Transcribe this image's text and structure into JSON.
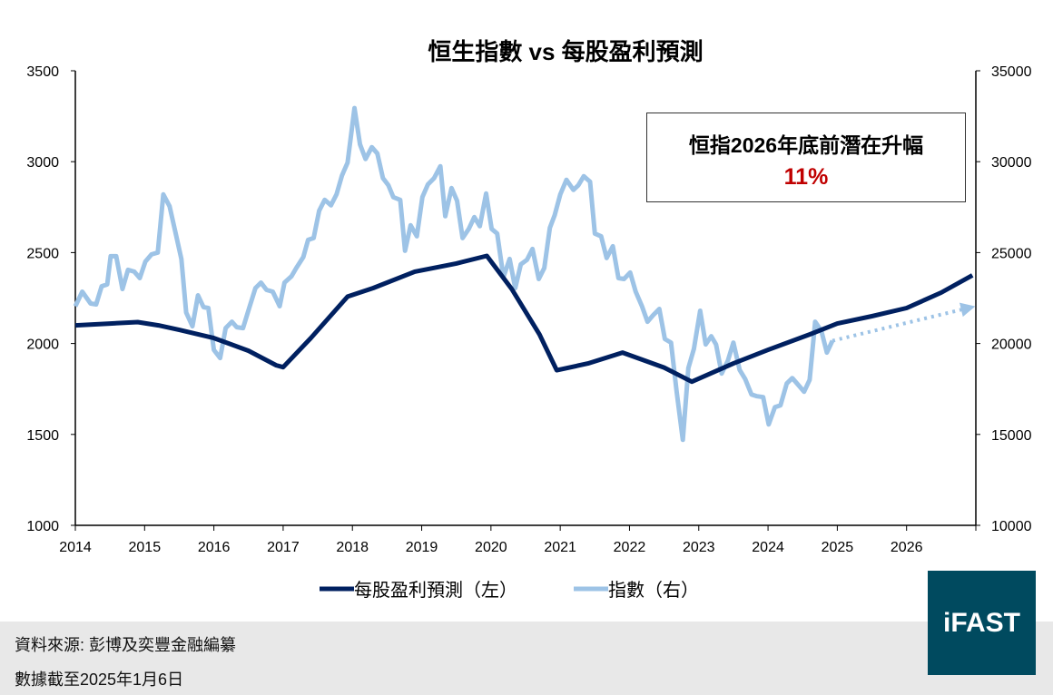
{
  "chart_data": {
    "type": "line",
    "title": "恒生指數 vs 每股盈利預測",
    "x_ticks": [
      "2014",
      "2015",
      "2016",
      "2017",
      "2018",
      "2019",
      "2020",
      "2021",
      "2022",
      "2023",
      "2024",
      "2025",
      "2026"
    ],
    "xlim": [
      2014,
      2027
    ],
    "y_left": {
      "ylim": [
        1000,
        3500
      ],
      "ticks": [
        "1000",
        "1500",
        "2000",
        "2500",
        "3000",
        "3500"
      ]
    },
    "y_right": {
      "ylim": [
        10000,
        35000
      ],
      "ticks": [
        "10000",
        "15000",
        "20000",
        "25000",
        "30000",
        "35000"
      ]
    },
    "grid": false,
    "legend_placement": "bottom",
    "series": [
      {
        "name": "每股盈利預測（左）",
        "axis": "left",
        "color": "#002060",
        "points": [
          [
            2014.0,
            2100
          ],
          [
            2014.5,
            2110
          ],
          [
            2014.9,
            2118
          ],
          [
            2015.2,
            2100
          ],
          [
            2015.5,
            2075
          ],
          [
            2016.0,
            2030
          ],
          [
            2016.5,
            1960
          ],
          [
            2016.9,
            1880
          ],
          [
            2017.0,
            1870
          ],
          [
            2017.4,
            2030
          ],
          [
            2017.93,
            2258
          ],
          [
            2018.3,
            2305
          ],
          [
            2018.9,
            2395
          ],
          [
            2019.5,
            2440
          ],
          [
            2019.94,
            2482
          ],
          [
            2020.3,
            2300
          ],
          [
            2020.7,
            2050
          ],
          [
            2020.95,
            1853
          ],
          [
            2021.4,
            1890
          ],
          [
            2021.9,
            1950
          ],
          [
            2022.5,
            1868
          ],
          [
            2022.9,
            1790
          ],
          [
            2023.5,
            1890
          ],
          [
            2024.0,
            1965
          ],
          [
            2024.6,
            2050
          ],
          [
            2025.0,
            2110
          ],
          [
            2025.5,
            2150
          ],
          [
            2026.0,
            2195
          ],
          [
            2026.5,
            2280
          ],
          [
            2026.95,
            2375
          ]
        ]
      },
      {
        "name": "指數（右）",
        "axis": "right",
        "color": "#9dc3e6",
        "points": [
          [
            2014.0,
            22050
          ],
          [
            2014.1,
            22850
          ],
          [
            2014.22,
            22200
          ],
          [
            2014.3,
            22150
          ],
          [
            2014.38,
            23150
          ],
          [
            2014.46,
            23250
          ],
          [
            2014.51,
            24800
          ],
          [
            2014.59,
            24800
          ],
          [
            2014.68,
            23000
          ],
          [
            2014.76,
            24050
          ],
          [
            2014.85,
            23950
          ],
          [
            2014.93,
            23600
          ],
          [
            2015.01,
            24500
          ],
          [
            2015.1,
            24900
          ],
          [
            2015.19,
            25000
          ],
          [
            2015.27,
            28200
          ],
          [
            2015.36,
            27550
          ],
          [
            2015.44,
            26200
          ],
          [
            2015.53,
            24650
          ],
          [
            2015.6,
            21700
          ],
          [
            2015.69,
            20950
          ],
          [
            2015.77,
            22650
          ],
          [
            2015.85,
            22000
          ],
          [
            2015.92,
            21950
          ],
          [
            2016.0,
            19650
          ],
          [
            2016.09,
            19200
          ],
          [
            2016.17,
            20850
          ],
          [
            2016.26,
            21200
          ],
          [
            2016.33,
            20900
          ],
          [
            2016.42,
            20850
          ],
          [
            2016.51,
            21950
          ],
          [
            2016.6,
            23050
          ],
          [
            2016.68,
            23350
          ],
          [
            2016.76,
            22950
          ],
          [
            2016.85,
            22850
          ],
          [
            2016.95,
            22050
          ],
          [
            2017.02,
            23350
          ],
          [
            2017.12,
            23700
          ],
          [
            2017.19,
            24150
          ],
          [
            2017.29,
            24750
          ],
          [
            2017.36,
            25700
          ],
          [
            2017.44,
            25800
          ],
          [
            2017.52,
            27300
          ],
          [
            2017.6,
            27900
          ],
          [
            2017.69,
            27600
          ],
          [
            2017.77,
            28200
          ],
          [
            2017.85,
            29250
          ],
          [
            2017.93,
            29950
          ],
          [
            2018.03,
            32950
          ],
          [
            2018.11,
            30950
          ],
          [
            2018.19,
            30150
          ],
          [
            2018.28,
            30800
          ],
          [
            2018.36,
            30450
          ],
          [
            2018.44,
            29100
          ],
          [
            2018.52,
            28700
          ],
          [
            2018.59,
            28050
          ],
          [
            2018.69,
            27900
          ],
          [
            2018.76,
            25100
          ],
          [
            2018.84,
            26500
          ],
          [
            2018.93,
            25900
          ],
          [
            2019.01,
            28050
          ],
          [
            2019.09,
            28750
          ],
          [
            2019.18,
            29100
          ],
          [
            2019.27,
            29750
          ],
          [
            2019.34,
            27000
          ],
          [
            2019.43,
            28550
          ],
          [
            2019.51,
            27850
          ],
          [
            2019.59,
            25800
          ],
          [
            2019.68,
            26300
          ],
          [
            2019.76,
            26950
          ],
          [
            2019.84,
            26450
          ],
          [
            2019.93,
            28250
          ],
          [
            2020.01,
            26300
          ],
          [
            2020.09,
            26050
          ],
          [
            2020.18,
            23650
          ],
          [
            2020.27,
            24650
          ],
          [
            2020.35,
            23050
          ],
          [
            2020.43,
            24350
          ],
          [
            2020.52,
            24600
          ],
          [
            2020.6,
            25200
          ],
          [
            2020.69,
            23550
          ],
          [
            2020.77,
            24150
          ],
          [
            2020.85,
            26350
          ],
          [
            2020.92,
            27050
          ],
          [
            2021.0,
            28200
          ],
          [
            2021.09,
            29000
          ],
          [
            2021.19,
            28450
          ],
          [
            2021.26,
            28700
          ],
          [
            2021.34,
            29200
          ],
          [
            2021.43,
            28900
          ],
          [
            2021.5,
            26050
          ],
          [
            2021.59,
            25900
          ],
          [
            2021.67,
            24700
          ],
          [
            2021.76,
            25350
          ],
          [
            2021.84,
            23600
          ],
          [
            2021.92,
            23550
          ],
          [
            2022.01,
            23900
          ],
          [
            2022.09,
            22850
          ],
          [
            2022.18,
            22050
          ],
          [
            2022.26,
            21200
          ],
          [
            2022.34,
            21550
          ],
          [
            2022.43,
            21900
          ],
          [
            2022.51,
            20250
          ],
          [
            2022.6,
            20050
          ],
          [
            2022.68,
            17350
          ],
          [
            2022.77,
            14700
          ],
          [
            2022.85,
            18650
          ],
          [
            2022.93,
            19700
          ],
          [
            2023.02,
            21800
          ],
          [
            2023.1,
            19950
          ],
          [
            2023.18,
            20400
          ],
          [
            2023.25,
            19950
          ],
          [
            2023.33,
            18350
          ],
          [
            2023.42,
            19050
          ],
          [
            2023.5,
            20050
          ],
          [
            2023.59,
            18550
          ],
          [
            2023.67,
            18050
          ],
          [
            2023.76,
            17200
          ],
          [
            2023.84,
            17100
          ],
          [
            2023.93,
            17050
          ],
          [
            2024.01,
            15550
          ],
          [
            2024.1,
            16500
          ],
          [
            2024.18,
            16600
          ],
          [
            2024.27,
            17800
          ],
          [
            2024.35,
            18100
          ],
          [
            2024.43,
            17750
          ],
          [
            2024.52,
            17350
          ],
          [
            2024.6,
            18000
          ],
          [
            2024.68,
            21200
          ],
          [
            2024.77,
            20700
          ],
          [
            2024.85,
            19500
          ],
          [
            2024.93,
            20150
          ]
        ]
      },
      {
        "axis": "right",
        "style": "dotted-arrow",
        "color": "#9dc3e6",
        "points": [
          [
            2024.93,
            20150
          ],
          [
            2026.89,
            21950
          ]
        ]
      }
    ],
    "annotation": {
      "line1": "恒指2026年底前潛在升幅",
      "line2": "11%",
      "line2_color": "#c00000"
    }
  },
  "footer": {
    "source": "資料來源: 彭博及奕豐金融編纂",
    "date": "數據截至2025年1月6日",
    "logo_text": "iFAST",
    "logo_color": "#004a5f"
  }
}
